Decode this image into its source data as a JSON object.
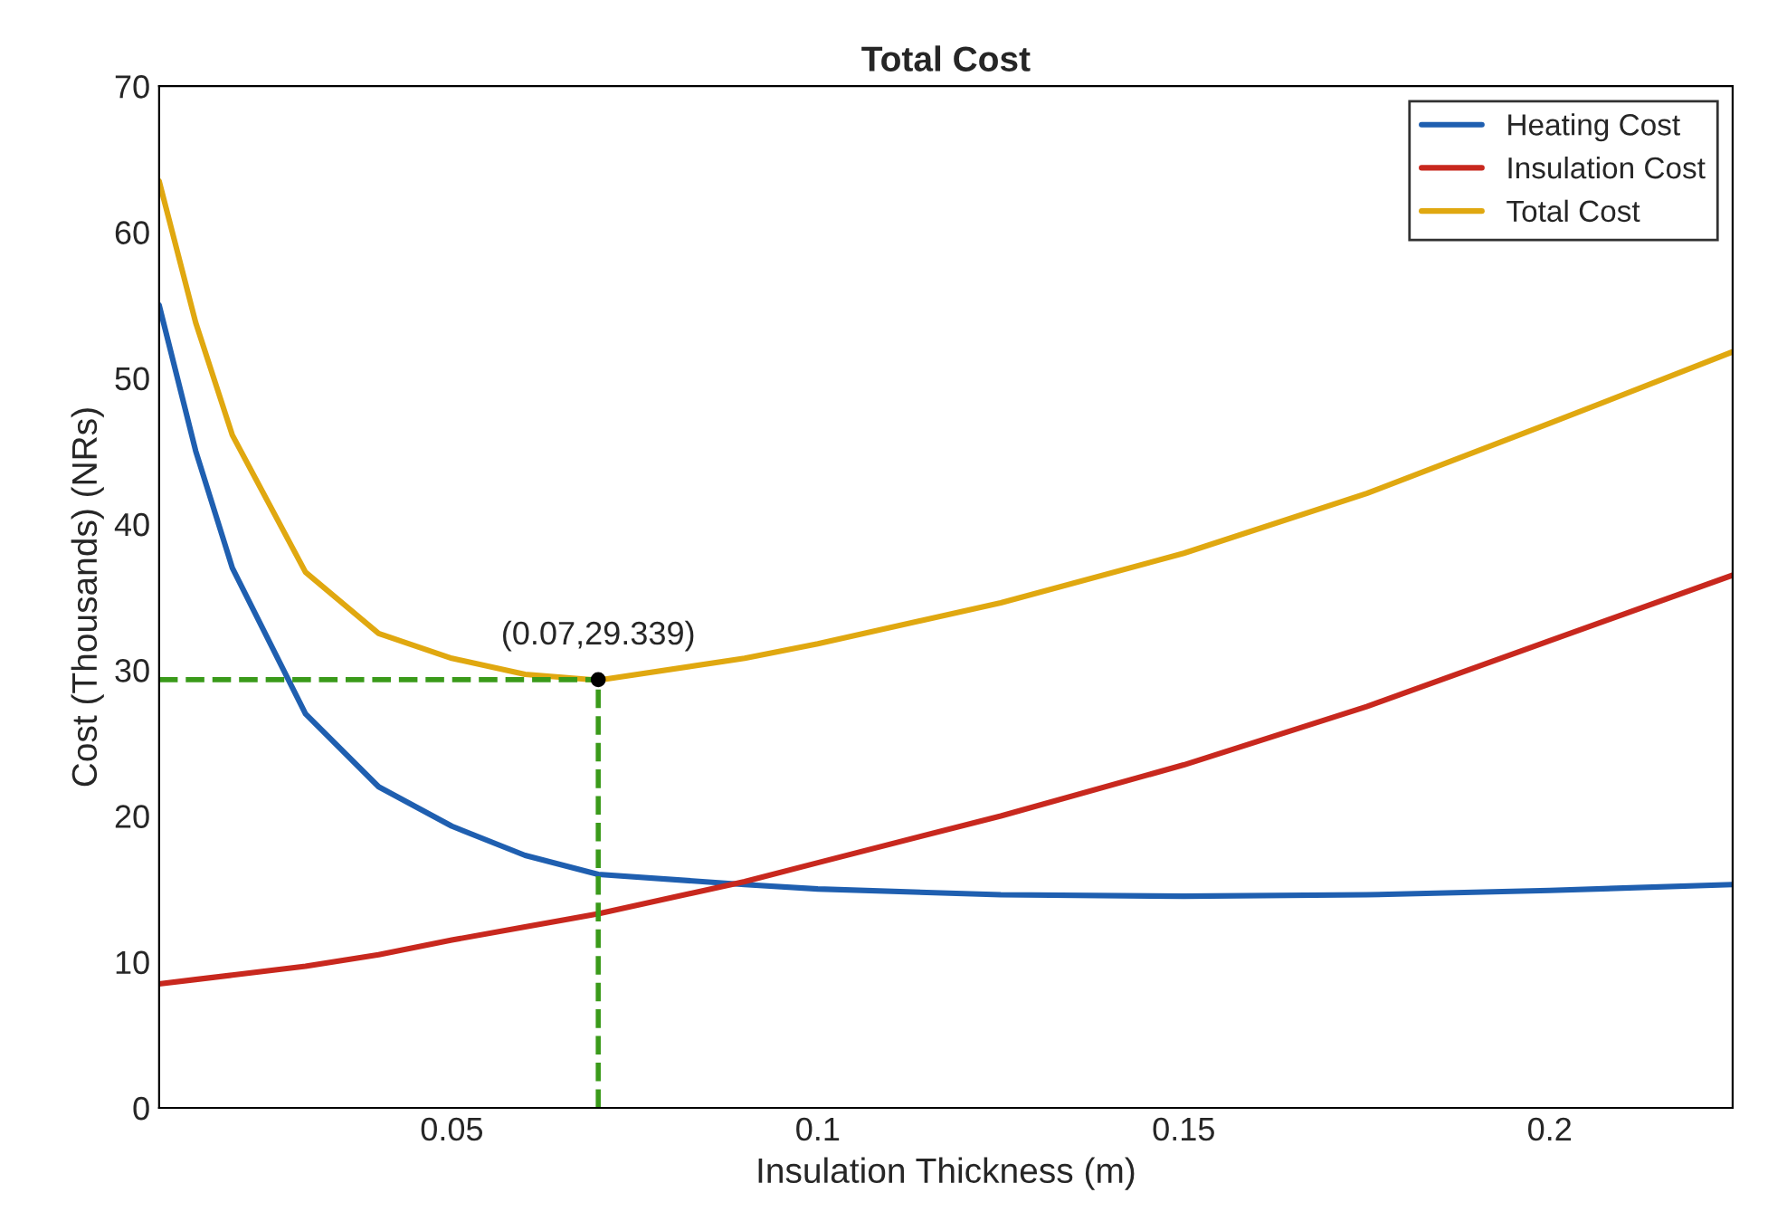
{
  "chart_data": {
    "type": "line",
    "title": "Total Cost",
    "xlabel": "Insulation Thickness (m)",
    "ylabel": "Cost (Thousands) (NRs)",
    "x": [
      0.01,
      0.015,
      0.02,
      0.03,
      0.04,
      0.05,
      0.06,
      0.07,
      0.09,
      0.1,
      0.125,
      0.15,
      0.175,
      0.2,
      0.225
    ],
    "series": [
      {
        "name": "Heating Cost",
        "color": "#1f5fb0",
        "values": [
          55,
          45,
          37,
          27,
          22,
          19.3,
          17.3,
          16,
          15.3,
          15,
          14.6,
          14.5,
          14.6,
          14.9,
          15.3
        ]
      },
      {
        "name": "Insulation Cost",
        "color": "#c8281e",
        "values": [
          8.5,
          8.8,
          9.1,
          9.7,
          10.5,
          11.5,
          12.4,
          13.3,
          15.5,
          16.8,
          20,
          23.5,
          27.5,
          32,
          36.5
        ]
      },
      {
        "name": "Total Cost",
        "color": "#e0a810",
        "values": [
          63.5,
          53.8,
          46.1,
          36.7,
          32.5,
          30.8,
          29.7,
          29.3,
          30.8,
          31.8,
          34.6,
          38,
          42.1,
          46.9,
          51.8
        ]
      }
    ],
    "xlim": [
      0.01,
      0.225
    ],
    "xticks": [
      0.05,
      0.1,
      0.15,
      0.2
    ],
    "ylim": [
      0,
      70
    ],
    "yticks": [
      0,
      10,
      20,
      30,
      40,
      50,
      60,
      70
    ],
    "annotations": [
      {
        "text": "(0.07,29.339)",
        "x": 0.07,
        "y": 29.339
      }
    ],
    "legend": "top right",
    "grid": false,
    "line_style": "solid",
    "marker": "none"
  }
}
